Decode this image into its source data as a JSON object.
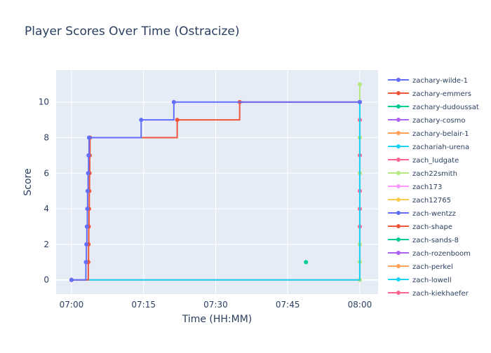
{
  "chart_data": {
    "type": "line",
    "title": "Player Scores Over Time (Ostracize)",
    "xlabel": "Time (HH:MM)",
    "ylabel": "Score",
    "x_ticks": [
      "07:00",
      "07:15",
      "07:30",
      "07:45",
      "08:00"
    ],
    "x_tick_minutes": [
      0,
      15,
      30,
      45,
      60
    ],
    "xlim_minutes": [
      -3.2,
      63.8
    ],
    "ylim": [
      -0.8,
      11.8
    ],
    "y_ticks": [
      0,
      2,
      4,
      6,
      8,
      10
    ],
    "grid": true,
    "legend_position": "right",
    "line_shape": "step",
    "series": [
      {
        "name": "zachary-wilde-1",
        "color": "#636efa",
        "points": [
          [
            0,
            0
          ],
          [
            3,
            1
          ],
          [
            3.1,
            2
          ],
          [
            3.2,
            3
          ],
          [
            3.3,
            4
          ],
          [
            3.35,
            5
          ],
          [
            3.45,
            6
          ],
          [
            3.55,
            7
          ],
          [
            3.65,
            8
          ],
          [
            14.5,
            9
          ],
          [
            21.3,
            10
          ],
          [
            60,
            10
          ]
        ]
      },
      {
        "name": "zachary-emmers",
        "color": "#ef553b",
        "points": [
          [
            0,
            0
          ],
          [
            3.5,
            1
          ],
          [
            3.55,
            2
          ],
          [
            3.6,
            3
          ],
          [
            3.65,
            4
          ],
          [
            3.7,
            5
          ],
          [
            3.75,
            6
          ],
          [
            3.8,
            7
          ],
          [
            3.85,
            8
          ],
          [
            22,
            9
          ],
          [
            35,
            10
          ],
          [
            60,
            10
          ]
        ]
      },
      {
        "name": "zachary-dudoussat",
        "color": "#00cc96",
        "points": [
          [
            48.8,
            1
          ]
        ]
      },
      {
        "name": "zachary-cosmo",
        "color": "#ab63fa",
        "points": [
          [
            0,
            0
          ]
        ]
      },
      {
        "name": "zachary-belair-1",
        "color": "#ffa15a",
        "points": [
          [
            0,
            0
          ]
        ]
      },
      {
        "name": "zachariah-urena",
        "color": "#19d3f3",
        "points": [
          [
            0,
            0
          ],
          [
            60,
            10
          ]
        ]
      },
      {
        "name": "zach_ludgate",
        "color": "#ff6692",
        "points": [
          [
            0,
            0
          ],
          [
            60,
            3
          ],
          [
            60,
            4
          ],
          [
            60,
            5
          ],
          [
            60,
            7
          ],
          [
            60,
            9
          ]
        ]
      },
      {
        "name": "zach22smith",
        "color": "#b6e880",
        "points": [
          [
            0,
            0
          ],
          [
            60,
            0
          ],
          [
            60,
            1
          ],
          [
            60,
            2
          ],
          [
            60,
            6
          ],
          [
            60,
            8
          ],
          [
            60,
            11
          ]
        ]
      },
      {
        "name": "zach173",
        "color": "#ff97ff",
        "points": [
          [
            0,
            0
          ]
        ]
      },
      {
        "name": "zach12765",
        "color": "#fecb52",
        "points": [
          [
            0,
            0
          ]
        ]
      },
      {
        "name": "zach-wentzz",
        "color": "#636efa",
        "points": []
      },
      {
        "name": "zach-shape",
        "color": "#ef553b",
        "points": []
      },
      {
        "name": "zach-sands-8",
        "color": "#00cc96",
        "points": []
      },
      {
        "name": "zach-rozenboom",
        "color": "#ab63fa",
        "points": []
      },
      {
        "name": "zach-perkel",
        "color": "#ffa15a",
        "points": []
      },
      {
        "name": "zach-lowell",
        "color": "#19d3f3",
        "points": []
      },
      {
        "name": "zach-kiekhaefer",
        "color": "#ff6692",
        "points": []
      }
    ]
  }
}
